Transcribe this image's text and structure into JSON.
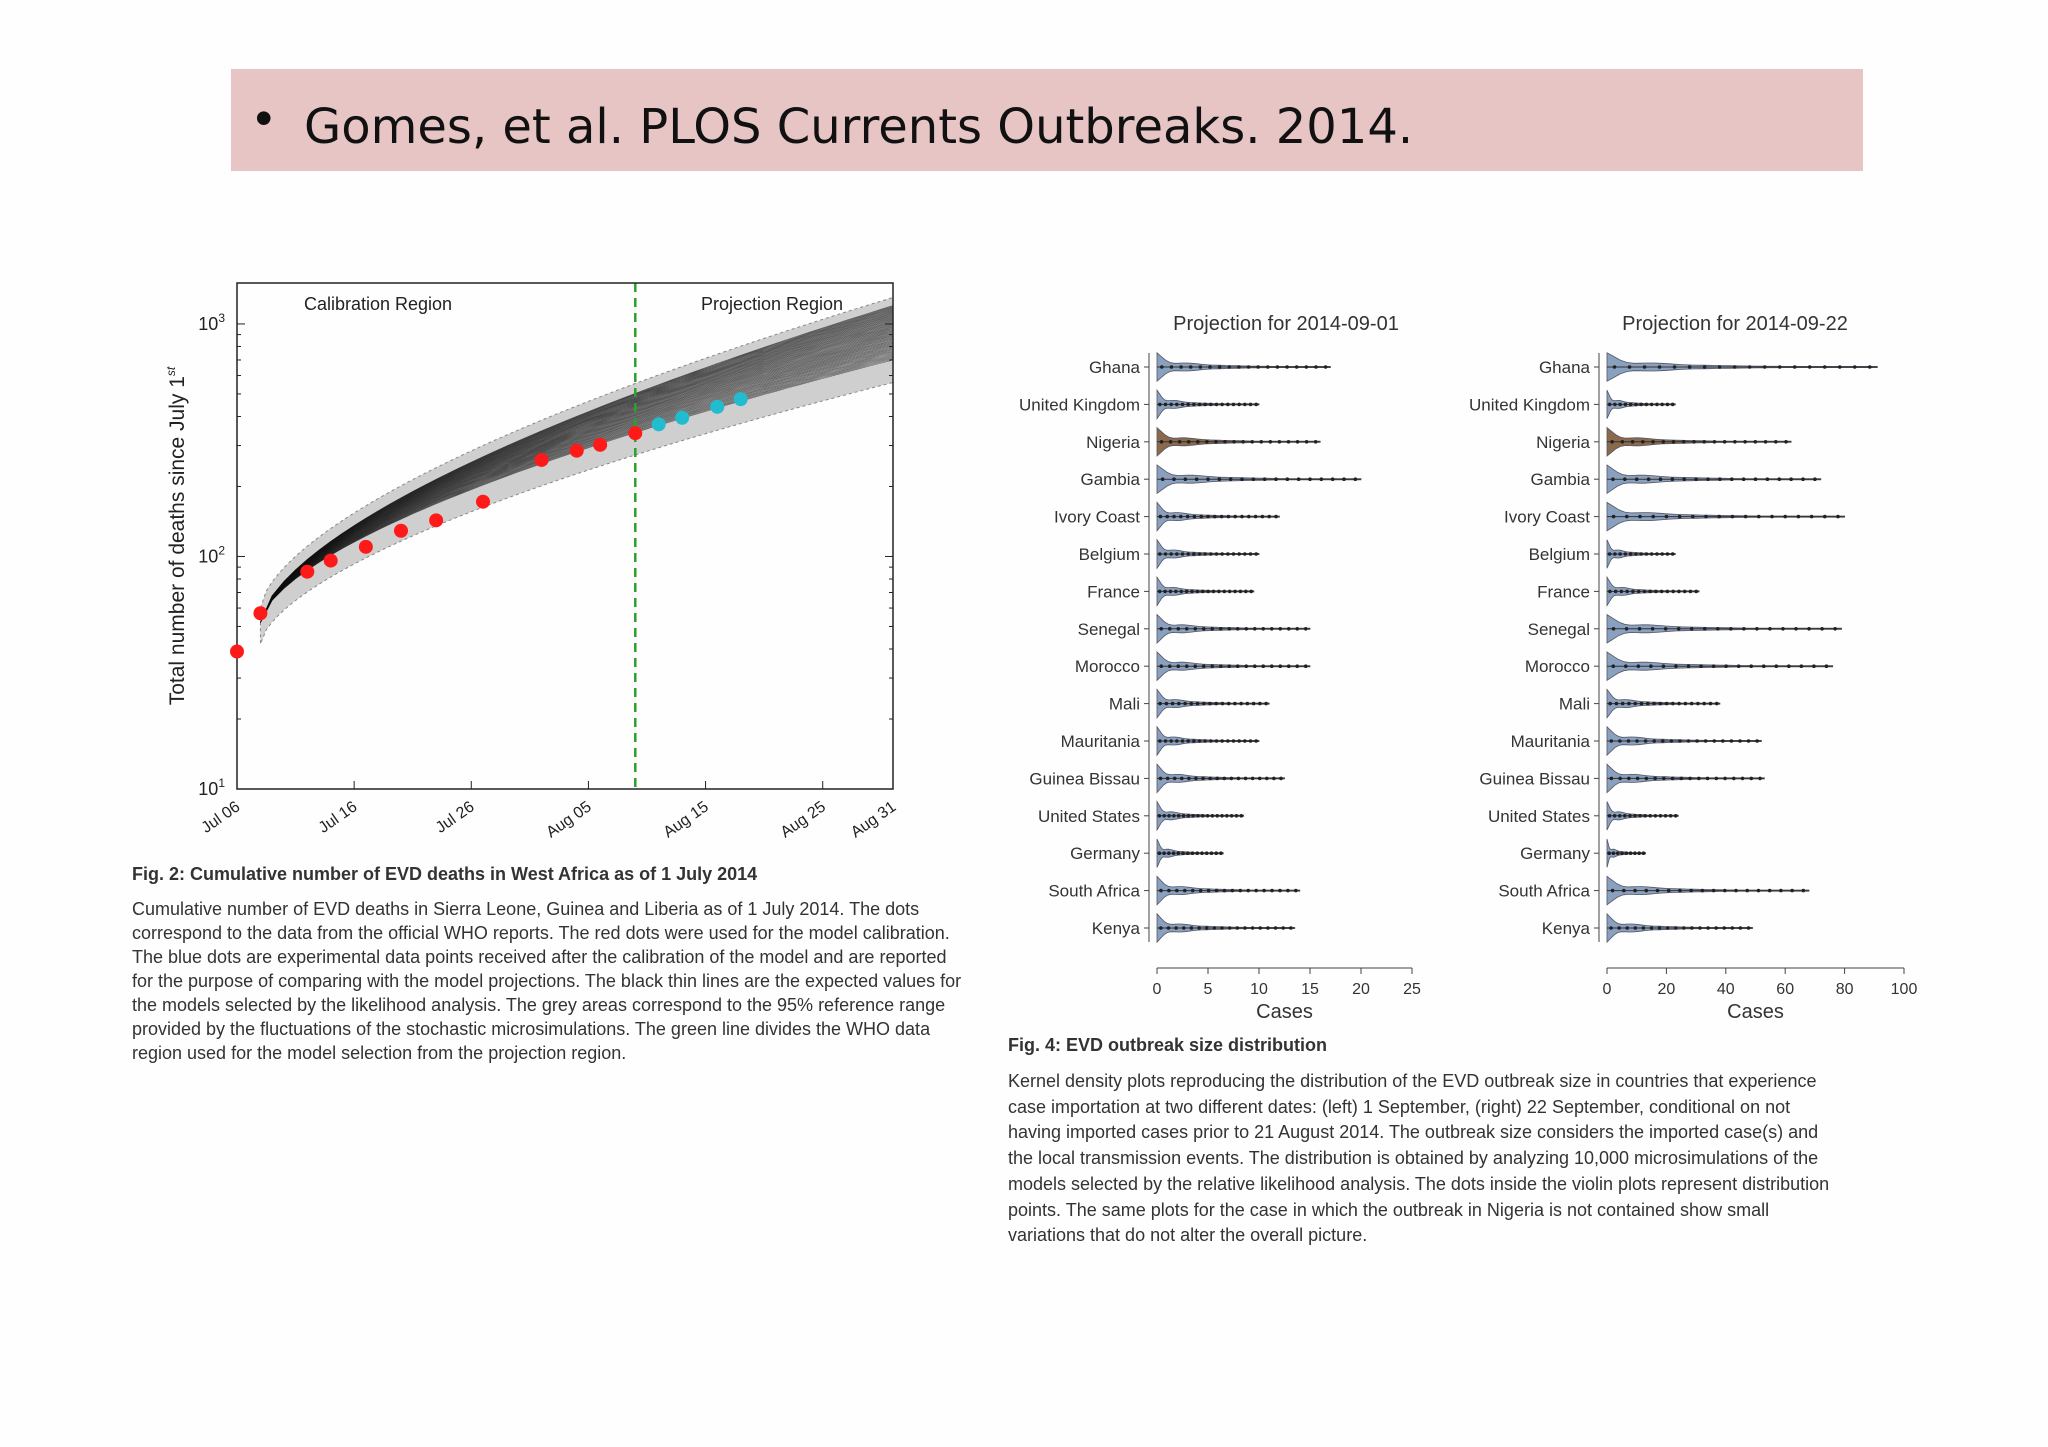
{
  "header": {
    "bullet": "•",
    "text": "Gomes, et al. PLOS Currents Outbreaks. 2014."
  },
  "fig2": {
    "title": "Fig. 2: Cumulative number of EVD deaths in West Africa as of 1 July 2014",
    "caption": [
      "Cumulative number of EVD deaths in Sierra Leone, Guinea and Liberia as of 1 July 2014. The dots",
      "correspond to the data from the official WHO reports. The red dots were used for the model calibration.",
      "The blue dots are experimental data points received after the calibration of the model and are reported",
      "for the purpose of comparing with the model projections. The black thin lines are the expected values for",
      "the models selected by the likelihood analysis. The grey areas correspond to the 95% reference range",
      "provided by the fluctuations of the stochastic microsimulations. The green line divides the WHO data",
      "region used for the model selection from the projection region."
    ]
  },
  "fig4": {
    "title": "Fig. 4: EVD outbreak size distribution",
    "caption": [
      "Kernel density plots reproducing the distribution of the EVD outbreak size in countries that experience",
      "case importation at two different dates: (left) 1 September, (right) 22 September, conditional on not",
      "having imported cases prior to 21 August 2014. The outbreak size considers the imported case(s) and",
      "the local transmission events. The distribution is obtained by analyzing 10,000 microsimulations of the",
      "models selected by the relative likelihood analysis. The dots inside the violin plots represent distribution",
      "points. The same plots for the case in which the outbreak in Nigeria is not contained show small",
      "variations that do not alter the overall picture."
    ]
  },
  "chart_data": [
    {
      "type": "scatter",
      "ylabel": "Total number of deaths since July 1",
      "ylabel_sup": "st",
      "y_scale": "log",
      "ylim": [
        10,
        1500
      ],
      "yticks": [
        {
          "value": 10,
          "base": "10",
          "exp": "1"
        },
        {
          "value": 100,
          "base": "10",
          "exp": "2"
        },
        {
          "value": 1000,
          "base": "10",
          "exp": "3"
        }
      ],
      "x_tick_labels": [
        "Jul 06",
        "Jul 16",
        "Jul 26",
        "Aug 05",
        "Aug 15",
        "Aug 25",
        "Aug 31"
      ],
      "xlim": [
        "Jul 06",
        "Aug 31"
      ],
      "region_labels": [
        "Calibration Region",
        "Projection Region"
      ],
      "divider_date": "Aug 09",
      "divider_color": "#2ca02c",
      "series": [
        {
          "color": "#ff1a1a",
          "points": [
            [
              "Jul 06",
              39
            ],
            [
              "Jul 08",
              57
            ],
            [
              "Jul 12",
              86
            ],
            [
              "Jul 14",
              96
            ],
            [
              "Jul 17",
              110
            ],
            [
              "Jul 20",
              129
            ],
            [
              "Jul 23",
              143
            ],
            [
              "Jul 27",
              172
            ],
            [
              "Aug 01",
              260
            ],
            [
              "Aug 04",
              285
            ],
            [
              "Aug 06",
              302
            ],
            [
              "Aug 09",
              339
            ]
          ]
        },
        {
          "color": "#22bcd0",
          "points": [
            [
              "Aug 11",
              370
            ],
            [
              "Aug 13",
              395
            ],
            [
              "Aug 16",
              440
            ],
            [
              "Aug 18",
              475
            ]
          ]
        }
      ],
      "expected_range_at_start": [
        42,
        60
      ],
      "expected_range_at_end": [
        560,
        1300
      ]
    },
    {
      "type": "violin",
      "title": "Projection for 2014-09-01",
      "xlabel": "Cases",
      "xlim": [
        0,
        25
      ],
      "xticks": [
        0,
        5,
        10,
        15,
        20,
        25
      ],
      "categories": [
        "Ghana",
        "United Kingdom",
        "Nigeria",
        "Gambia",
        "Ivory Coast",
        "Belgium",
        "France",
        "Senegal",
        "Morocco",
        "Mali",
        "Mauritania",
        "Guinea Bissau",
        "United States",
        "Germany",
        "South Africa",
        "Kenya"
      ],
      "max_values": [
        17,
        10,
        16,
        20,
        12,
        10,
        9.5,
        15,
        15,
        11,
        10,
        12.5,
        8.5,
        6.5,
        14,
        13.5
      ],
      "highlight": {
        "category": "Nigeria",
        "color": "#8a6a4a"
      },
      "color": "#8aa0bf"
    },
    {
      "type": "violin",
      "title": "Projection for 2014-09-22",
      "xlabel": "Cases",
      "xlim": [
        0,
        100
      ],
      "xticks": [
        0,
        20,
        40,
        60,
        80,
        100
      ],
      "categories": [
        "Ghana",
        "United Kingdom",
        "Nigeria",
        "Gambia",
        "Ivory Coast",
        "Belgium",
        "France",
        "Senegal",
        "Morocco",
        "Mali",
        "Mauritania",
        "Guinea Bissau",
        "United States",
        "Germany",
        "South Africa",
        "Kenya"
      ],
      "max_values": [
        91,
        23,
        62,
        72,
        80,
        23,
        31,
        79,
        76,
        38,
        52,
        53,
        24,
        13,
        68,
        49
      ],
      "highlight": {
        "category": "Nigeria",
        "color": "#8a6a4a"
      },
      "color": "#8aa0bf"
    }
  ]
}
